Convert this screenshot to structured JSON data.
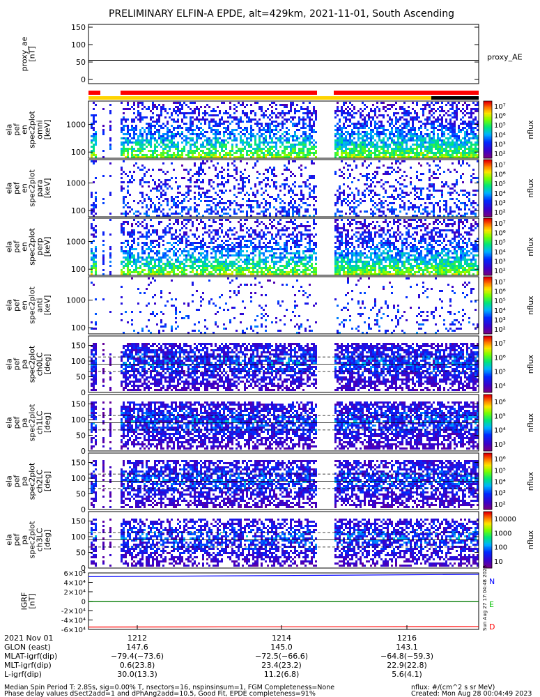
{
  "title": "PRELIMINARY ELFIN-A EPDE, alt=429km, 2021-11-01, South Ascending",
  "created": "Created: Mon Aug 28 00:04:49 2023",
  "side_stamp": "Sun Aug 27 17:04:48 2023",
  "flux_units": "nflux: #/(cm^2 s sr MeV)",
  "footer": [
    "Median Spin Period T: 2.85s, sig=0.00% T, nsectors=16, nspinsinsum=1, FGM Completeness=None",
    "Phase delay values dSect2add=1 and dPhAng2add=10.5, Good Fit, EPDE completeness=91%"
  ],
  "colors": {
    "ae_line": "#000000",
    "bar_red": "#ff0000",
    "bar_yellow": "#ffd400",
    "bar_black": "#000000",
    "grf_N": "#0000ff",
    "grf_E": "#00c000",
    "grf_D": "#ff0000"
  },
  "chart_data": [
    {
      "type": "line",
      "name": "proxy_ae",
      "ylabel": [
        "proxy_ae",
        "[nT]"
      ],
      "yticks": [
        "0",
        "50",
        "100",
        "150"
      ],
      "ylim": [
        0,
        150
      ],
      "series": [
        {
          "name": "proxy_AE",
          "value": 55
        }
      ],
      "legend": "proxy_AE"
    },
    {
      "type": "heatmap",
      "name": "ela pef en spec2plot omni",
      "ylabel": [
        "ela",
        "pef",
        "en",
        "spec2plot",
        "omni",
        "[keV]"
      ],
      "yticks": [
        "100",
        "1000"
      ],
      "zlabel": "nflux",
      "cticks": [
        "10²",
        "10³",
        "10⁴",
        "10⁵",
        "10⁶",
        "10⁷"
      ]
    },
    {
      "type": "heatmap",
      "name": "ela pef en spec2plot para",
      "ylabel": [
        "ela",
        "pef",
        "en",
        "spec2plot",
        "para",
        "[keV]"
      ],
      "yticks": [
        "100",
        "1000"
      ],
      "zlabel": "nflux",
      "cticks": [
        "10²",
        "10³",
        "10⁴",
        "10⁵",
        "10⁶",
        "10⁷"
      ]
    },
    {
      "type": "heatmap",
      "name": "ela pef en spec2plot perp",
      "ylabel": [
        "ela",
        "pef",
        "en",
        "spec2plot",
        "perp",
        "[keV]"
      ],
      "yticks": [
        "100",
        "1000"
      ],
      "zlabel": "nflux",
      "cticks": [
        "10²",
        "10³",
        "10⁴",
        "10⁵",
        "10⁶",
        "10⁷"
      ]
    },
    {
      "type": "heatmap",
      "name": "ela pef en spec2plot anti",
      "ylabel": [
        "ela",
        "pef",
        "en",
        "spec2plot",
        "anti",
        "[keV]"
      ],
      "yticks": [
        "100",
        "1000"
      ],
      "zlabel": "nflux",
      "cticks": [
        "10²",
        "10³",
        "10⁴",
        "10⁵",
        "10⁶",
        "10⁷"
      ]
    },
    {
      "type": "heatmap",
      "name": "ela pef pa spec2plot ch0LC",
      "ylabel": [
        "ela",
        "pef",
        "pa",
        "spec2plot",
        "ch0LC",
        "[deg]"
      ],
      "yticks": [
        "0",
        "50",
        "100",
        "150"
      ],
      "ylim": [
        0,
        180
      ],
      "zlabel": "nflux",
      "cticks": [
        "10⁴",
        "10⁵",
        "10⁶",
        "10⁷"
      ]
    },
    {
      "type": "heatmap",
      "name": "ela pef pa spec2plot ch1LC",
      "ylabel": [
        "ela",
        "pef",
        "pa",
        "spec2plot",
        "ch1LC",
        "[deg]"
      ],
      "yticks": [
        "0",
        "50",
        "100",
        "150"
      ],
      "ylim": [
        0,
        180
      ],
      "zlabel": "nflux",
      "cticks": [
        "10³",
        "10⁴",
        "10⁵",
        "10⁶"
      ]
    },
    {
      "type": "heatmap",
      "name": "ela pef pa spec2plot ch2LC",
      "ylabel": [
        "ela",
        "pef",
        "pa",
        "spec2plot",
        "ch2LC",
        "[deg]"
      ],
      "yticks": [
        "0",
        "50",
        "100",
        "150"
      ],
      "ylim": [
        0,
        180
      ],
      "zlabel": "nflux",
      "cticks": [
        "10²",
        "10³",
        "10⁴",
        "10⁵",
        "10⁶"
      ]
    },
    {
      "type": "heatmap",
      "name": "ela pef pa spec2plot ch3LC",
      "ylabel": [
        "ela",
        "pef",
        "pa",
        "spec2plot",
        "ch3LC",
        "[deg]"
      ],
      "yticks": [
        "0",
        "50",
        "100",
        "150"
      ],
      "ylim": [
        0,
        180
      ],
      "zlabel": "nflux",
      "cticks": [
        "10",
        "100",
        "1000",
        "10000"
      ]
    },
    {
      "type": "line",
      "name": "IGRF",
      "ylabel": [
        "IGRF",
        "[nT]"
      ],
      "yticks": [
        "-6×10⁴",
        "-4×10⁴",
        "-2×10⁴",
        "0",
        "2×10⁴",
        "4×10⁴",
        "6×10⁴"
      ],
      "ylim": [
        -60000,
        60000
      ],
      "series": [
        {
          "name": "N",
          "values": [
            52000,
            57000
          ]
        },
        {
          "name": "E",
          "values": [
            -500,
            -500
          ]
        },
        {
          "name": "D",
          "values": [
            -55000,
            -54000
          ]
        }
      ]
    }
  ],
  "x_axis": {
    "date": "2021 Nov 01",
    "rows": [
      {
        "label": "",
        "values": [
          "1212",
          "1214",
          "1216"
        ]
      },
      {
        "label": "GLON (east)",
        "values": [
          "147.6",
          "145.0",
          "143.1"
        ]
      },
      {
        "label": "MLAT-igrf(dip)",
        "values": [
          "−79.4(−73.6)",
          "−72.5(−66.6)",
          "−64.8(−59.3)"
        ]
      },
      {
        "label": "MLT-igrf(dip)",
        "values": [
          "0.6(23.8)",
          "23.4(23.2)",
          "22.9(22.8)"
        ]
      },
      {
        "label": "L-igrf(dip)",
        "values": [
          "30.0(13.3)",
          "11.2(6.8)",
          "5.6(4.1)"
        ]
      }
    ]
  }
}
